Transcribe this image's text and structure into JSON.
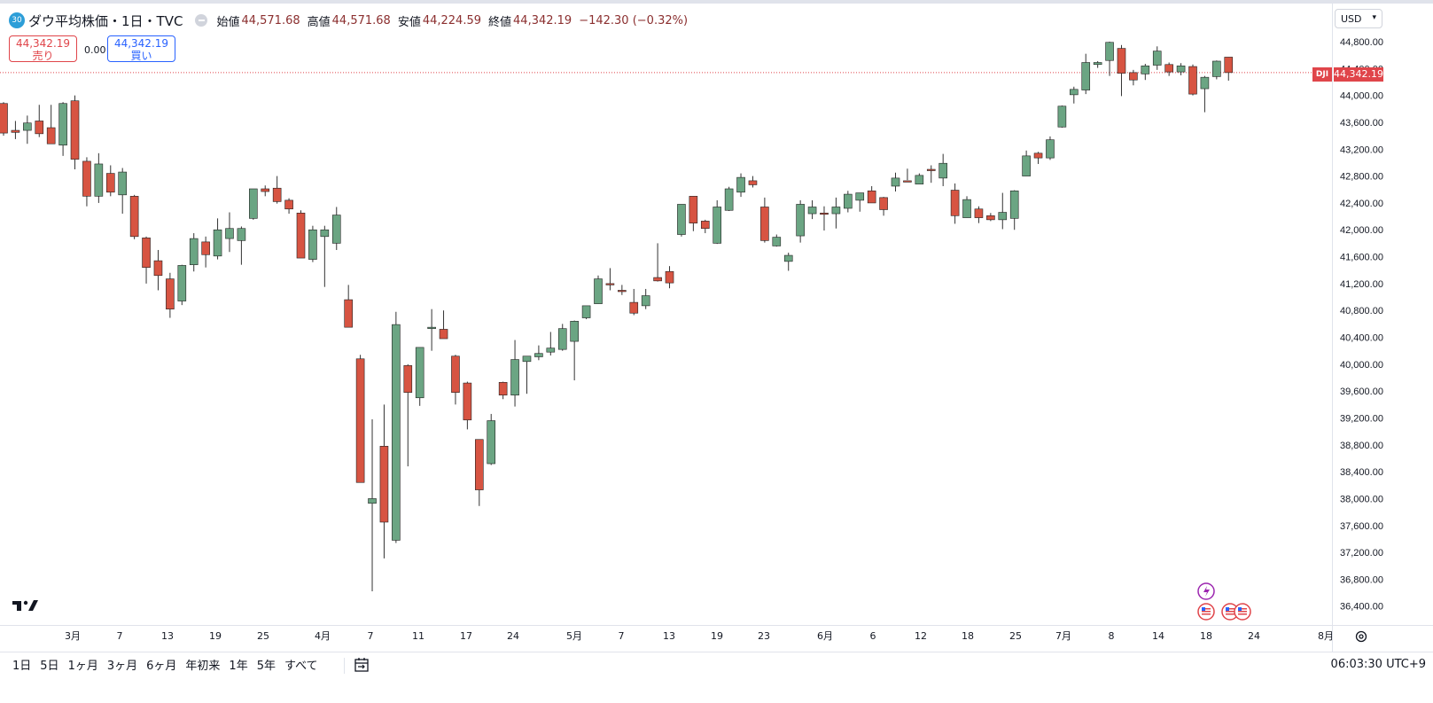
{
  "header": {
    "badge": "30",
    "symbol_title": "ダウ平均株価・1日・TVC",
    "ohlc": [
      {
        "label": "始値",
        "value": "44,571.68"
      },
      {
        "label": "高値",
        "value": "44,571.68"
      },
      {
        "label": "安値",
        "value": "44,224.59"
      },
      {
        "label": "終値",
        "value": "44,342.19"
      }
    ],
    "change": "−142.30 (−0.32%)"
  },
  "trade": {
    "sell_price": "44,342.19",
    "sell_label": "売り",
    "spread": "0.00",
    "buy_price": "44,342.19",
    "buy_label": "買い"
  },
  "price_axis": {
    "currency": "USD",
    "current_price": "44,342.19",
    "symbol_tag": "DJI",
    "tick_labels": [
      "44,800.00",
      "44,400.00",
      "44,000.00",
      "43,600.00",
      "43,200.00",
      "42,800.00",
      "42,400.00",
      "42,000.00",
      "41,600.00",
      "41,200.00",
      "40,800.00",
      "40,400.00",
      "40,000.00",
      "39,600.00",
      "39,200.00",
      "38,800.00",
      "38,400.00",
      "38,000.00",
      "37,600.00",
      "37,200.00",
      "36,800.00",
      "36,400.00"
    ]
  },
  "time_axis": {
    "labels": [
      "3月",
      "7",
      "13",
      "19",
      "25",
      "4月",
      "7",
      "11",
      "17",
      "24",
      "5月",
      "7",
      "13",
      "19",
      "23",
      "6月",
      "6",
      "12",
      "18",
      "25",
      "7月",
      "8",
      "14",
      "18",
      "24",
      "8月"
    ]
  },
  "bottom_bar": {
    "ranges": [
      "1日",
      "5日",
      "1ヶ月",
      "3ヶ月",
      "6ヶ月",
      "年初来",
      "1年",
      "5年",
      "すべて"
    ],
    "clock": "06:03:30 UTC+9"
  },
  "colors": {
    "up": "#6ba583",
    "down": "#d75442",
    "wick": "#333333",
    "price_line": "#e0454a"
  },
  "chart_data": {
    "type": "candlestick",
    "ylim": [
      36200,
      45000
    ],
    "candles": [
      {
        "o": 43880,
        "h": 43900,
        "l": 43400,
        "c": 43440
      },
      {
        "o": 43480,
        "h": 43620,
        "l": 43350,
        "c": 43450
      },
      {
        "o": 43480,
        "h": 43700,
        "l": 43280,
        "c": 43590
      },
      {
        "o": 43620,
        "h": 43860,
        "l": 43380,
        "c": 43430
      },
      {
        "o": 43520,
        "h": 43860,
        "l": 43280,
        "c": 43280
      },
      {
        "o": 43260,
        "h": 43900,
        "l": 43100,
        "c": 43880
      },
      {
        "o": 43920,
        "h": 44000,
        "l": 42900,
        "c": 43050
      },
      {
        "o": 43020,
        "h": 43080,
        "l": 42350,
        "c": 42500
      },
      {
        "o": 42500,
        "h": 43140,
        "l": 42400,
        "c": 42980
      },
      {
        "o": 42840,
        "h": 42960,
        "l": 42500,
        "c": 42560
      },
      {
        "o": 42520,
        "h": 42920,
        "l": 42240,
        "c": 42860
      },
      {
        "o": 42500,
        "h": 42520,
        "l": 41860,
        "c": 41900
      },
      {
        "o": 41880,
        "h": 41900,
        "l": 41200,
        "c": 41440
      },
      {
        "o": 41540,
        "h": 41700,
        "l": 41100,
        "c": 41320
      },
      {
        "o": 41270,
        "h": 41360,
        "l": 40690,
        "c": 40820
      },
      {
        "o": 40940,
        "h": 41480,
        "l": 40880,
        "c": 41470
      },
      {
        "o": 41480,
        "h": 41950,
        "l": 41380,
        "c": 41870
      },
      {
        "o": 41820,
        "h": 41900,
        "l": 41440,
        "c": 41630
      },
      {
        "o": 41610,
        "h": 42170,
        "l": 41560,
        "c": 42000
      },
      {
        "o": 41870,
        "h": 42260,
        "l": 41670,
        "c": 42020
      },
      {
        "o": 41840,
        "h": 42050,
        "l": 41480,
        "c": 42020
      },
      {
        "o": 42170,
        "h": 42610,
        "l": 42150,
        "c": 42610
      },
      {
        "o": 42610,
        "h": 42660,
        "l": 42500,
        "c": 42570
      },
      {
        "o": 42620,
        "h": 42800,
        "l": 42390,
        "c": 42420
      },
      {
        "o": 42440,
        "h": 42470,
        "l": 42240,
        "c": 42310
      },
      {
        "o": 42250,
        "h": 42290,
        "l": 41630,
        "c": 41580
      },
      {
        "o": 41560,
        "h": 42060,
        "l": 41520,
        "c": 42000
      },
      {
        "o": 41900,
        "h": 42060,
        "l": 41150,
        "c": 42000
      },
      {
        "o": 41800,
        "h": 42340,
        "l": 41700,
        "c": 42220
      },
      {
        "o": 40960,
        "h": 41180,
        "l": 40560,
        "c": 40550
      },
      {
        "o": 40080,
        "h": 40140,
        "l": 38240,
        "c": 38240
      },
      {
        "o": 37930,
        "h": 39180,
        "l": 36620,
        "c": 38000
      },
      {
        "o": 38780,
        "h": 39400,
        "l": 37110,
        "c": 37650
      },
      {
        "o": 37380,
        "h": 40780,
        "l": 37340,
        "c": 40590
      },
      {
        "o": 39980,
        "h": 40000,
        "l": 38480,
        "c": 39580
      },
      {
        "o": 39500,
        "h": 40200,
        "l": 39380,
        "c": 40250
      },
      {
        "o": 40540,
        "h": 40820,
        "l": 40200,
        "c": 40550
      },
      {
        "o": 40520,
        "h": 40800,
        "l": 40400,
        "c": 40380
      },
      {
        "o": 40120,
        "h": 40140,
        "l": 39400,
        "c": 39580
      },
      {
        "o": 39720,
        "h": 39740,
        "l": 39030,
        "c": 39170
      },
      {
        "o": 38880,
        "h": 38880,
        "l": 37890,
        "c": 38130
      },
      {
        "o": 38520,
        "h": 39260,
        "l": 38500,
        "c": 39160
      },
      {
        "o": 39730,
        "h": 39740,
        "l": 39480,
        "c": 39540
      },
      {
        "o": 39540,
        "h": 40360,
        "l": 39370,
        "c": 40070
      },
      {
        "o": 40040,
        "h": 40100,
        "l": 39560,
        "c": 40120
      },
      {
        "o": 40110,
        "h": 40280,
        "l": 40060,
        "c": 40160
      },
      {
        "o": 40180,
        "h": 40480,
        "l": 40130,
        "c": 40240
      },
      {
        "o": 40220,
        "h": 40600,
        "l": 40200,
        "c": 40530
      },
      {
        "o": 40340,
        "h": 40650,
        "l": 39760,
        "c": 40640
      },
      {
        "o": 40690,
        "h": 40860,
        "l": 40670,
        "c": 40870
      },
      {
        "o": 40900,
        "h": 41320,
        "l": 40900,
        "c": 41270
      },
      {
        "o": 41200,
        "h": 41430,
        "l": 41100,
        "c": 41180
      },
      {
        "o": 41100,
        "h": 41180,
        "l": 41030,
        "c": 41090
      },
      {
        "o": 40920,
        "h": 41120,
        "l": 40730,
        "c": 40760
      },
      {
        "o": 40870,
        "h": 41120,
        "l": 40820,
        "c": 41020
      },
      {
        "o": 41290,
        "h": 41800,
        "l": 41230,
        "c": 41240
      },
      {
        "o": 41380,
        "h": 41460,
        "l": 41130,
        "c": 41210
      },
      {
        "o": 41930,
        "h": 42380,
        "l": 41900,
        "c": 42380
      },
      {
        "o": 42500,
        "h": 42500,
        "l": 41980,
        "c": 42100
      },
      {
        "o": 42130,
        "h": 42150,
        "l": 41950,
        "c": 42020
      },
      {
        "o": 41800,
        "h": 42440,
        "l": 41790,
        "c": 42340
      },
      {
        "o": 42290,
        "h": 42640,
        "l": 42280,
        "c": 42610
      },
      {
        "o": 42560,
        "h": 42840,
        "l": 42490,
        "c": 42780
      },
      {
        "o": 42730,
        "h": 42800,
        "l": 42630,
        "c": 42670
      },
      {
        "o": 42340,
        "h": 42480,
        "l": 41810,
        "c": 41840
      },
      {
        "o": 41760,
        "h": 41930,
        "l": 41750,
        "c": 41890
      },
      {
        "o": 41530,
        "h": 41660,
        "l": 41390,
        "c": 41620
      },
      {
        "o": 41910,
        "h": 42440,
        "l": 41810,
        "c": 42380
      },
      {
        "o": 42240,
        "h": 42440,
        "l": 42160,
        "c": 42340
      },
      {
        "o": 42250,
        "h": 42350,
        "l": 41990,
        "c": 42240
      },
      {
        "o": 42240,
        "h": 42480,
        "l": 42020,
        "c": 42340
      },
      {
        "o": 42320,
        "h": 42580,
        "l": 42260,
        "c": 42530
      },
      {
        "o": 42440,
        "h": 42550,
        "l": 42270,
        "c": 42550
      },
      {
        "o": 42580,
        "h": 42650,
        "l": 42480,
        "c": 42400
      },
      {
        "o": 42480,
        "h": 42490,
        "l": 42210,
        "c": 42300
      },
      {
        "o": 42650,
        "h": 42850,
        "l": 42570,
        "c": 42770
      },
      {
        "o": 42730,
        "h": 42910,
        "l": 42740,
        "c": 42720
      },
      {
        "o": 42680,
        "h": 42840,
        "l": 42680,
        "c": 42810
      },
      {
        "o": 42900,
        "h": 42960,
        "l": 42700,
        "c": 42890
      },
      {
        "o": 42770,
        "h": 43130,
        "l": 42650,
        "c": 42990
      },
      {
        "o": 42590,
        "h": 42690,
        "l": 42090,
        "c": 42210
      },
      {
        "o": 42180,
        "h": 42500,
        "l": 42180,
        "c": 42450
      },
      {
        "o": 42310,
        "h": 42350,
        "l": 42100,
        "c": 42180
      },
      {
        "o": 42210,
        "h": 42250,
        "l": 42130,
        "c": 42150
      },
      {
        "o": 42150,
        "h": 42550,
        "l": 42010,
        "c": 42260
      },
      {
        "o": 42170,
        "h": 42590,
        "l": 42000,
        "c": 42580
      },
      {
        "o": 42800,
        "h": 43180,
        "l": 42800,
        "c": 43100
      },
      {
        "o": 43140,
        "h": 43160,
        "l": 42980,
        "c": 43070
      },
      {
        "o": 43070,
        "h": 43390,
        "l": 43040,
        "c": 43340
      },
      {
        "o": 43530,
        "h": 43850,
        "l": 43520,
        "c": 43840
      },
      {
        "o": 44010,
        "h": 44130,
        "l": 43880,
        "c": 44090
      },
      {
        "o": 44080,
        "h": 44620,
        "l": 44020,
        "c": 44490
      },
      {
        "o": 44460,
        "h": 44510,
        "l": 44410,
        "c": 44490
      },
      {
        "o": 44520,
        "h": 44800,
        "l": 44290,
        "c": 44790
      },
      {
        "o": 44700,
        "h": 44750,
        "l": 43990,
        "c": 44330
      },
      {
        "o": 44340,
        "h": 44380,
        "l": 44150,
        "c": 44230
      },
      {
        "o": 44320,
        "h": 44470,
        "l": 44230,
        "c": 44440
      },
      {
        "o": 44450,
        "h": 44730,
        "l": 44380,
        "c": 44660
      },
      {
        "o": 44460,
        "h": 44490,
        "l": 44290,
        "c": 44350
      },
      {
        "o": 44350,
        "h": 44480,
        "l": 44300,
        "c": 44440
      },
      {
        "o": 44430,
        "h": 44460,
        "l": 44000,
        "c": 44020
      },
      {
        "o": 44100,
        "h": 44290,
        "l": 43750,
        "c": 44270
      },
      {
        "o": 44280,
        "h": 44520,
        "l": 44240,
        "c": 44510
      },
      {
        "o": 44570,
        "h": 44570,
        "l": 44220,
        "c": 44340
      }
    ]
  }
}
